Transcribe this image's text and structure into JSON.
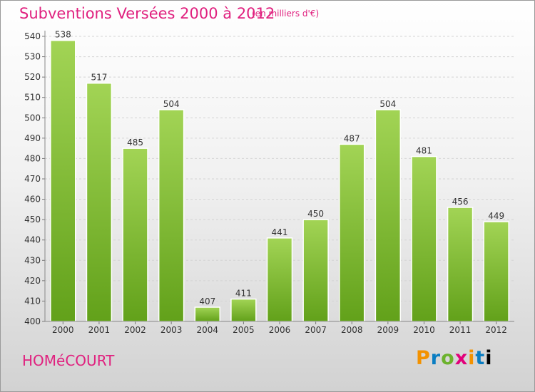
{
  "header": {
    "title": "Subventions Versées 2000 à 2012",
    "unit": "(en milliers d'€)"
  },
  "footer": {
    "city": "HOMéCOURT",
    "logo": "Proxiti"
  },
  "chart_data": {
    "type": "bar",
    "title": "Subventions Versées 2000 à 2012",
    "subtitle": "(en milliers d'€)",
    "categories": [
      "2000",
      "2001",
      "2002",
      "2003",
      "2004",
      "2005",
      "2006",
      "2007",
      "2008",
      "2009",
      "2010",
      "2011",
      "2012"
    ],
    "values": [
      538,
      517,
      485,
      504,
      407,
      411,
      441,
      450,
      487,
      504,
      481,
      456,
      449
    ],
    "ylim": [
      400,
      540
    ],
    "yticks": [
      400,
      410,
      420,
      430,
      440,
      450,
      460,
      470,
      480,
      490,
      500,
      510,
      520,
      530,
      540
    ],
    "grid": true,
    "bar_color": "#7dbb2f"
  }
}
